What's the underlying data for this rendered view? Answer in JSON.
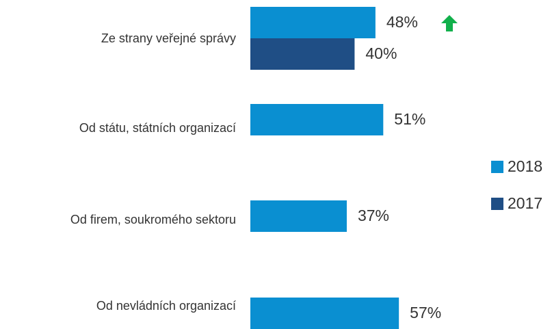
{
  "chart_data": {
    "type": "bar",
    "categories": [
      "Ze strany veřejné správy",
      "Od státu, státních organizací",
      "Od firem, soukromého sektoru",
      "Od nevládních organizací"
    ],
    "series": [
      {
        "name": "2018",
        "color": "#0a8fd1",
        "values": [
          48,
          51,
          37,
          57
        ],
        "value_labels": [
          "48%",
          "51%",
          "37%",
          "57%"
        ]
      },
      {
        "name": "2017",
        "color": "#1f4e85",
        "values": [
          40,
          null,
          null,
          null
        ],
        "value_labels": [
          "40%",
          null,
          null,
          null
        ]
      }
    ]
  }
}
